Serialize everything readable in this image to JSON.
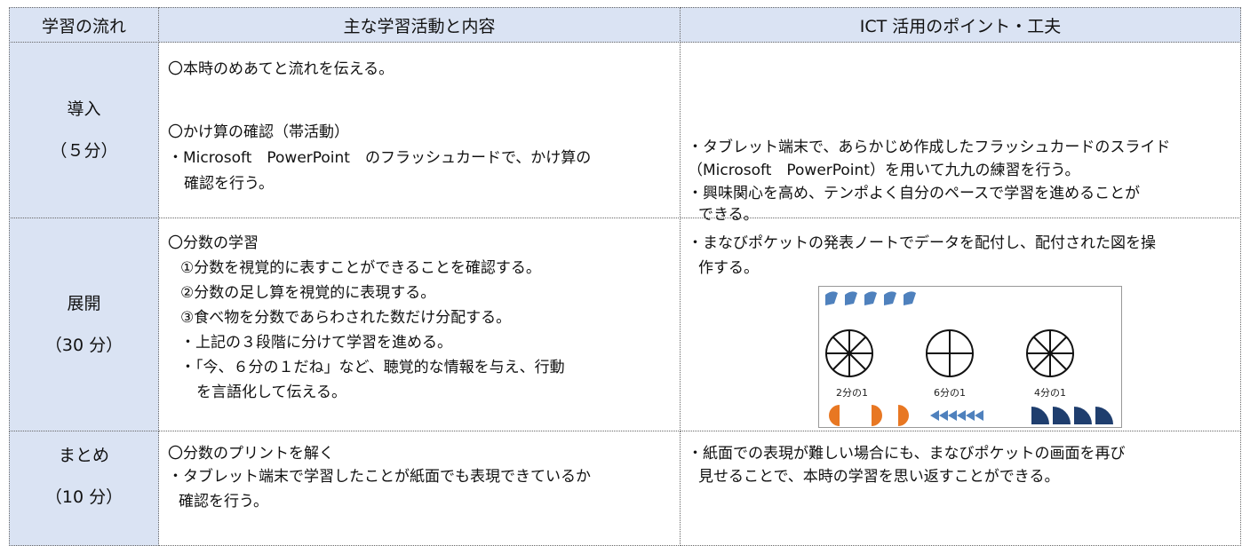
{
  "table": {
    "headers": [
      "学習の流れ",
      "主な学習活動と内容",
      "ICT 活用のポイント・工夫"
    ],
    "rows": [
      {
        "stage": [
          "導入",
          "（５分）"
        ],
        "activities": [
          "〇本時のめあてと流れを伝える。",
          "〇かけ算の確認（帯活動）",
          "・Microsoft　PowerPoint　のフラッシュカードで、かけ算の",
          "確認を行う。"
        ],
        "ict": [
          "・タブレット端末で、あらかじめ作成したフラッシュカードのスライド",
          "（Microsoft　PowerPoint）を用いて九九の練習を行う。",
          "・興味関心を高め、テンポよく自分のペースで学習を進めることが",
          "できる。"
        ]
      },
      {
        "stage": [
          "展開",
          "（30 分）"
        ],
        "activities": [
          "〇分数の学習",
          "①分数を視覚的に表すことができることを確認する。",
          "②分数の足し算を視覚的に表現する。",
          "③食べ物を分数であらわされた数だけ分配する。",
          "・上記の３段階に分けて学習を進める。",
          "・「今、６分の１だね」など、聴覚的な情報を与え、行動",
          "を言語化して伝える。"
        ],
        "ict": [
          "・まなびポケットの発表ノートでデータを配付し、配付された図を操",
          "作する。"
        ],
        "figure": {
          "labels": [
            "2分の1",
            "6分の1",
            "4分の1"
          ]
        }
      },
      {
        "stage": [
          "まとめ",
          "（10 分）"
        ],
        "activities": [
          "〇分数のプリントを解く",
          "・タブレット端末で学習したことが紙面でも表現できているか",
          "確認を行う。"
        ],
        "ict": [
          "・紙面での表現が難しい場合にも、まなびポケットの画面を再び",
          "見せることで、本時の学習を思い返すことができる。"
        ]
      }
    ]
  }
}
